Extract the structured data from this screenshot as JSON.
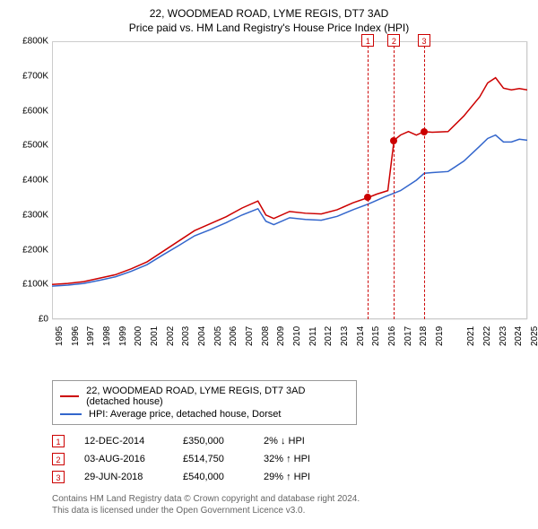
{
  "title": "22, WOODMEAD ROAD, LYME REGIS, DT7 3AD",
  "subtitle": "Price paid vs. HM Land Registry's House Price Index (HPI)",
  "chart": {
    "type": "line",
    "background_color": "#ffffff",
    "grid_color": "#eeeeee",
    "border_color": "#cccccc",
    "x": {
      "min": 1995,
      "max": 2025,
      "ticks": [
        1995,
        1996,
        1997,
        1998,
        1999,
        2000,
        2001,
        2002,
        2003,
        2004,
        2005,
        2006,
        2007,
        2008,
        2009,
        2010,
        2011,
        2012,
        2013,
        2014,
        2015,
        2016,
        2017,
        2018,
        2019,
        2021,
        2022,
        2023,
        2024,
        2025
      ]
    },
    "y": {
      "min": 0,
      "max": 800000,
      "tick_step": 100000,
      "ticks": [
        "£0",
        "£100K",
        "£200K",
        "£300K",
        "£400K",
        "£500K",
        "£600K",
        "£700K",
        "£800K"
      ]
    },
    "series": [
      {
        "name": "22, WOODMEAD ROAD, LYME REGIS, DT7 3AD (detached house)",
        "color": "#cc0000",
        "line_width": 1.5,
        "data": [
          [
            1995,
            100000
          ],
          [
            1996,
            103000
          ],
          [
            1997,
            108000
          ],
          [
            1998,
            118000
          ],
          [
            1999,
            128000
          ],
          [
            2000,
            145000
          ],
          [
            2001,
            165000
          ],
          [
            2002,
            195000
          ],
          [
            2003,
            225000
          ],
          [
            2004,
            255000
          ],
          [
            2005,
            275000
          ],
          [
            2006,
            295000
          ],
          [
            2007,
            320000
          ],
          [
            2008,
            340000
          ],
          [
            2008.5,
            300000
          ],
          [
            2009,
            290000
          ],
          [
            2010,
            310000
          ],
          [
            2011,
            305000
          ],
          [
            2012,
            303000
          ],
          [
            2013,
            315000
          ],
          [
            2014,
            335000
          ],
          [
            2014.95,
            350000
          ],
          [
            2015.5,
            360000
          ],
          [
            2016.2,
            370000
          ],
          [
            2016.59,
            514750
          ],
          [
            2017,
            530000
          ],
          [
            2017.5,
            540000
          ],
          [
            2018,
            530000
          ],
          [
            2018.49,
            540000
          ],
          [
            2019,
            538000
          ],
          [
            2020,
            540000
          ],
          [
            2021,
            585000
          ],
          [
            2022,
            640000
          ],
          [
            2022.5,
            680000
          ],
          [
            2023,
            695000
          ],
          [
            2023.5,
            665000
          ],
          [
            2024,
            660000
          ],
          [
            2024.5,
            664000
          ],
          [
            2025,
            660000
          ]
        ]
      },
      {
        "name": "HPI: Average price, detached house, Dorset",
        "color": "#3366cc",
        "line_width": 1.5,
        "data": [
          [
            1995,
            95000
          ],
          [
            1996,
            98000
          ],
          [
            1997,
            103000
          ],
          [
            1998,
            112000
          ],
          [
            1999,
            122000
          ],
          [
            2000,
            138000
          ],
          [
            2001,
            157000
          ],
          [
            2002,
            185000
          ],
          [
            2003,
            212000
          ],
          [
            2004,
            240000
          ],
          [
            2005,
            258000
          ],
          [
            2006,
            278000
          ],
          [
            2007,
            300000
          ],
          [
            2008,
            318000
          ],
          [
            2008.5,
            282000
          ],
          [
            2009,
            272000
          ],
          [
            2010,
            292000
          ],
          [
            2011,
            287000
          ],
          [
            2012,
            285000
          ],
          [
            2013,
            296000
          ],
          [
            2014,
            315000
          ],
          [
            2015,
            332000
          ],
          [
            2016,
            352000
          ],
          [
            2017,
            370000
          ],
          [
            2018,
            400000
          ],
          [
            2018.5,
            420000
          ],
          [
            2019,
            422000
          ],
          [
            2020,
            425000
          ],
          [
            2021,
            455000
          ],
          [
            2022,
            498000
          ],
          [
            2022.5,
            520000
          ],
          [
            2023,
            530000
          ],
          [
            2023.5,
            510000
          ],
          [
            2024,
            510000
          ],
          [
            2024.5,
            518000
          ],
          [
            2025,
            515000
          ]
        ]
      }
    ],
    "sale_bands": [
      {
        "start": 2014.85,
        "end": 2015.05,
        "color": "#e8eef7"
      },
      {
        "start": 2016.49,
        "end": 2016.69,
        "color": "#e8eef7"
      },
      {
        "start": 2018.39,
        "end": 2018.59,
        "color": "#e8eef7"
      }
    ],
    "sale_markers": [
      {
        "label": "1",
        "x": 2014.95,
        "y": 350000,
        "color": "#cc0000"
      },
      {
        "label": "2",
        "x": 2016.59,
        "y": 514750,
        "color": "#cc0000"
      },
      {
        "label": "3",
        "x": 2018.49,
        "y": 540000,
        "color": "#cc0000"
      }
    ],
    "point_radius": 4
  },
  "legend": {
    "items": [
      {
        "color": "#cc0000",
        "label": "22, WOODMEAD ROAD, LYME REGIS, DT7 3AD (detached house)"
      },
      {
        "color": "#3366cc",
        "label": "HPI: Average price, detached house, Dorset"
      }
    ]
  },
  "sales": [
    {
      "marker": "1",
      "date": "12-DEC-2014",
      "price": "£350,000",
      "pct": "2% ↓ HPI"
    },
    {
      "marker": "2",
      "date": "03-AUG-2016",
      "price": "£514,750",
      "pct": "32% ↑ HPI"
    },
    {
      "marker": "3",
      "date": "29-JUN-2018",
      "price": "£540,000",
      "pct": "29% ↑ HPI"
    }
  ],
  "footer": {
    "line1": "Contains HM Land Registry data © Crown copyright and database right 2024.",
    "line2": "This data is licensed under the Open Government Licence v3.0."
  }
}
